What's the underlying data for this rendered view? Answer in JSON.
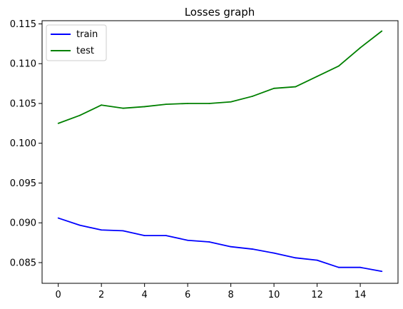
{
  "chart_data": {
    "type": "line",
    "title": "Losses graph",
    "xlabel": "",
    "ylabel": "",
    "x": [
      0,
      1,
      2,
      3,
      4,
      5,
      6,
      7,
      8,
      9,
      10,
      11,
      12,
      13,
      14,
      15
    ],
    "xlim": [
      -0.75,
      15.75
    ],
    "ylim": [
      0.0824,
      0.1154
    ],
    "xticks": [
      0,
      2,
      4,
      6,
      8,
      10,
      12,
      14
    ],
    "yticks": [
      0.085,
      0.09,
      0.095,
      0.1,
      0.105,
      0.11,
      0.115
    ],
    "ytick_labels": [
      "0.085",
      "0.090",
      "0.095",
      "0.100",
      "0.105",
      "0.110",
      "0.115"
    ],
    "grid": false,
    "legend_position": "top-left",
    "series": [
      {
        "name": "train",
        "color": "#0000ff",
        "values": [
          0.0906,
          0.0897,
          0.0891,
          0.089,
          0.0884,
          0.0884,
          0.0878,
          0.0876,
          0.087,
          0.0867,
          0.0862,
          0.0856,
          0.0853,
          0.0844,
          0.0844,
          0.0839
        ]
      },
      {
        "name": "test",
        "color": "#008000",
        "values": [
          0.1025,
          0.1035,
          0.1048,
          0.1044,
          0.1046,
          0.1049,
          0.105,
          0.105,
          0.1052,
          0.1059,
          0.1069,
          0.1071,
          0.1084,
          0.1097,
          0.112,
          0.1141
        ]
      }
    ]
  }
}
